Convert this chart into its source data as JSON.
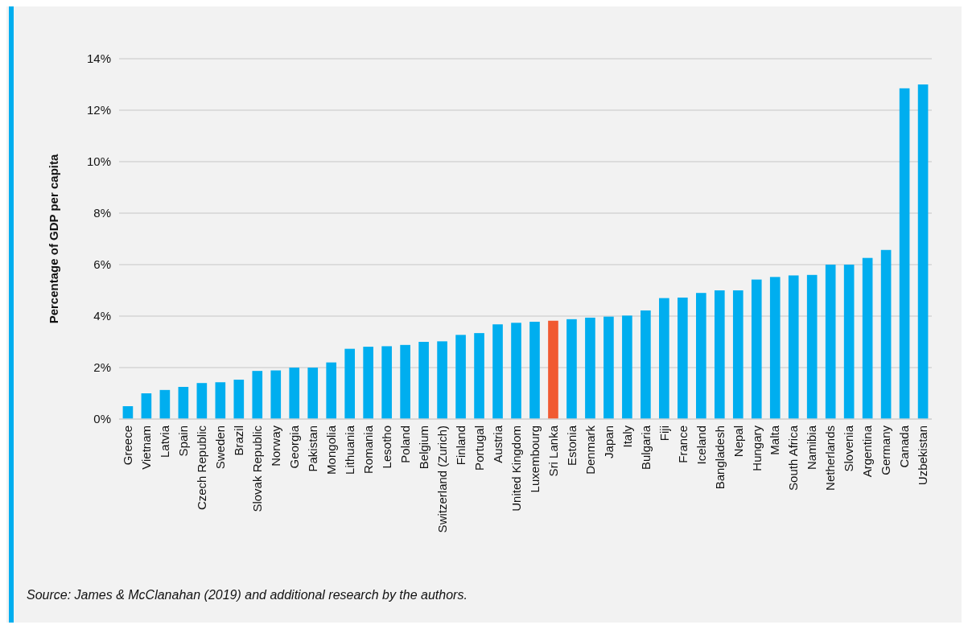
{
  "chart_data": {
    "type": "bar",
    "ylabel": "Percentage of GDP per capita",
    "categories": [
      "Greece",
      "Vietnam",
      "Latvia",
      "Spain",
      "Czech Republic",
      "Sweden",
      "Brazil",
      "Slovak Republic",
      "Norway",
      "Georgia",
      "Pakistan",
      "Mongolia",
      "Lithuania",
      "Romania",
      "Lesotho",
      "Poland",
      "Belgium",
      "Switzerland (Zurich)",
      "Finland",
      "Portugal",
      "Austria",
      "United Kingdom",
      "Luxembourg",
      "Sri Lanka",
      "Estonia",
      "Denmark",
      "Japan",
      "Italy",
      "Bulgaria",
      "Fiji",
      "France",
      "Iceland",
      "Bangladesh",
      "Nepal",
      "Hungary",
      "Malta",
      "South Africa",
      "Namibia",
      "Netherlands",
      "Slovenia",
      "Argentina",
      "Germany",
      "Canada",
      "Uzbekistan"
    ],
    "values": [
      0.5,
      1.0,
      1.13,
      1.25,
      1.4,
      1.43,
      1.53,
      1.87,
      1.89,
      2.0,
      2.0,
      2.2,
      2.73,
      2.81,
      2.83,
      2.88,
      3.0,
      3.02,
      3.27,
      3.34,
      3.68,
      3.74,
      3.78,
      3.82,
      3.88,
      3.94,
      3.98,
      4.02,
      4.22,
      4.7,
      4.72,
      4.9,
      5.0,
      5.0,
      5.42,
      5.52,
      5.58,
      5.6,
      6.0,
      6.0,
      6.26,
      6.57,
      12.85,
      13.0
    ],
    "colors": [
      "#00aeef",
      "#00aeef",
      "#00aeef",
      "#00aeef",
      "#00aeef",
      "#00aeef",
      "#00aeef",
      "#00aeef",
      "#00aeef",
      "#00aeef",
      "#00aeef",
      "#00aeef",
      "#00aeef",
      "#00aeef",
      "#00aeef",
      "#00aeef",
      "#00aeef",
      "#00aeef",
      "#00aeef",
      "#00aeef",
      "#00aeef",
      "#00aeef",
      "#00aeef",
      "#f15a31",
      "#00aeef",
      "#00aeef",
      "#00aeef",
      "#00aeef",
      "#00aeef",
      "#00aeef",
      "#00aeef",
      "#00aeef",
      "#00aeef",
      "#00aeef",
      "#00aeef",
      "#00aeef",
      "#00aeef",
      "#00aeef",
      "#00aeef",
      "#00aeef",
      "#00aeef",
      "#00aeef",
      "#00aeef",
      "#00aeef"
    ],
    "ylim": [
      0,
      14
    ],
    "yticks": [
      {
        "value": 0,
        "label": "0%"
      },
      {
        "value": 2,
        "label": "2%"
      },
      {
        "value": 4,
        "label": "4%"
      },
      {
        "value": 6,
        "label": "6%"
      },
      {
        "value": 8,
        "label": "8%"
      },
      {
        "value": 10,
        "label": "10%"
      },
      {
        "value": 12,
        "label": "12%"
      },
      {
        "value": 14,
        "label": "14%"
      }
    ],
    "grid": "y",
    "annotations": [
      "Source: James & McClanahan (2019) and additional research by the authors."
    ]
  }
}
